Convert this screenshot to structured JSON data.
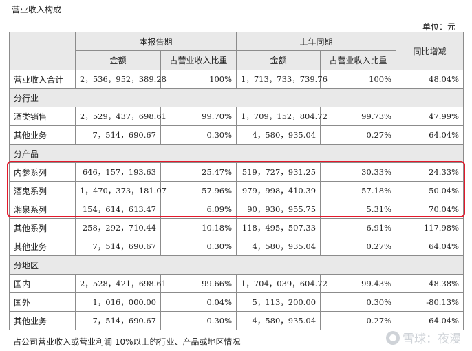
{
  "title": "营业收入构成",
  "unit": "单位：元",
  "headers": {
    "current_period": "本报告期",
    "prior_period": "上年同期",
    "yoy_change": "同比增减",
    "amount": "金额",
    "share_of_revenue": "占营业收入比重"
  },
  "total_row": {
    "label": "营业收入合计",
    "current_amount": "2，536，952，389.28",
    "current_share": "100%",
    "prior_amount": "1，713，733，739.76",
    "prior_share": "100%",
    "yoy": "48.04%"
  },
  "by_industry": {
    "title": "分行业",
    "rows": [
      {
        "label": "酒类销售",
        "current_amount": "2，529，437，698.61",
        "current_share": "99.70%",
        "prior_amount": "1，709，152，804.72",
        "prior_share": "99.73%",
        "yoy": "47.99%"
      },
      {
        "label": "其他业务",
        "current_amount": "7，514，690.67",
        "current_share": "0.30%",
        "prior_amount": "4，580，935.04",
        "prior_share": "0.27%",
        "yoy": "64.04%"
      }
    ]
  },
  "by_product": {
    "title": "分产品",
    "rows": [
      {
        "label": "内参系列",
        "current_amount": "646，157，193.63",
        "current_share": "25.47%",
        "prior_amount": "519，727，931.25",
        "prior_share": "30.33%",
        "yoy": "24.33%"
      },
      {
        "label": "酒鬼系列",
        "current_amount": "1，470，373，181.07",
        "current_share": "57.96%",
        "prior_amount": "979，998，410.39",
        "prior_share": "57.18%",
        "yoy": "50.04%"
      },
      {
        "label": "湘泉系列",
        "current_amount": "154，614，613.47",
        "current_share": "6.09%",
        "prior_amount": "90，930，955.75",
        "prior_share": "5.31%",
        "yoy": "70.04%"
      },
      {
        "label": "其他系列",
        "current_amount": "258，292，710.44",
        "current_share": "10.18%",
        "prior_amount": "118，495，507.33",
        "prior_share": "6.91%",
        "yoy": "117.98%"
      },
      {
        "label": "其他业务",
        "current_amount": "7，514，690.67",
        "current_share": "0.30%",
        "prior_amount": "4，580，935.04",
        "prior_share": "0.27%",
        "yoy": "64.04%"
      }
    ]
  },
  "by_region": {
    "title": "分地区",
    "rows": [
      {
        "label": "国内",
        "current_amount": "2，528，421，698.61",
        "current_share": "99.66%",
        "prior_amount": "1，704，039，604.72",
        "prior_share": "99.43%",
        "yoy": "48.38%"
      },
      {
        "label": "国外",
        "current_amount": "1，016，000.00",
        "current_share": "0.04%",
        "prior_amount": "5，113，200.00",
        "prior_share": "0.30%",
        "yoy": "-80.13%"
      },
      {
        "label": "其他业务",
        "current_amount": "7，514，690.67",
        "current_share": "0.30%",
        "prior_amount": "4，580，935.04",
        "prior_share": "0.27%",
        "yoy": "64.04%"
      }
    ]
  },
  "footnote": "占公司营业收入或营业利润 10%以上的行业、产品或地区情况",
  "watermark": "雪球：夜漫",
  "colors": {
    "highlight_border": "#e3192b",
    "header_bg": "#e9e9e9",
    "grid": "#8c8c8c"
  }
}
